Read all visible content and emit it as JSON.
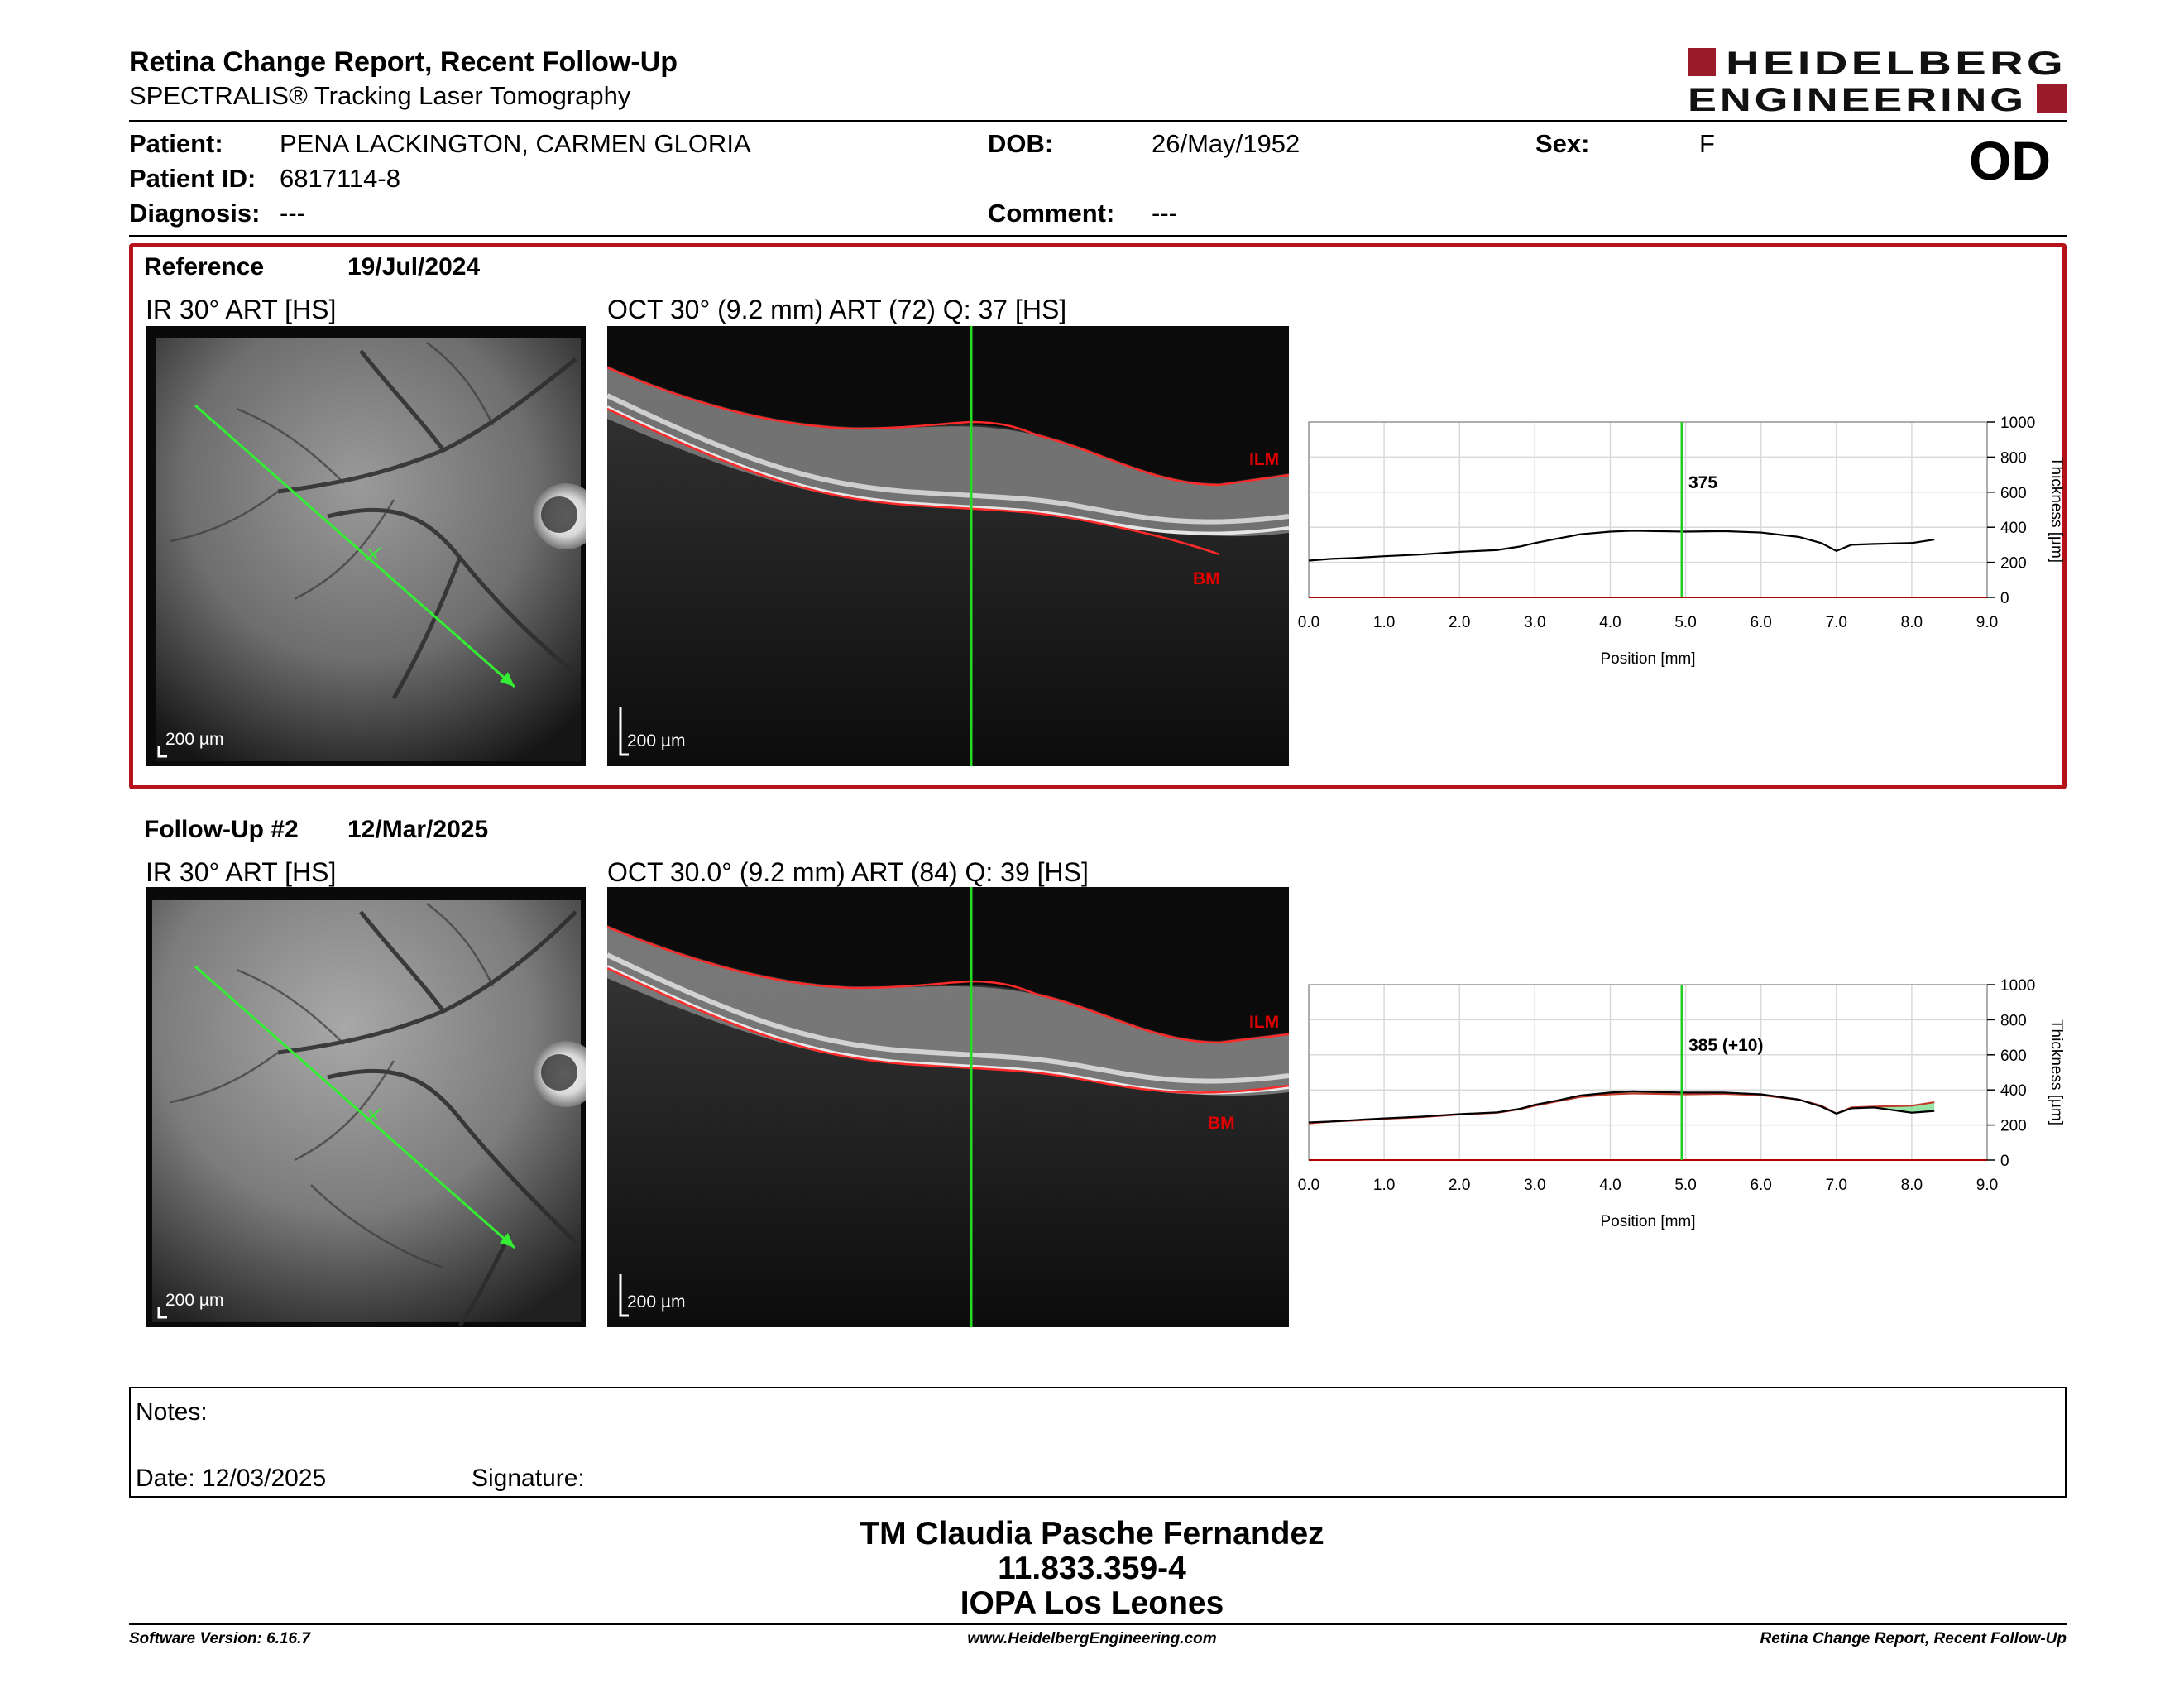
{
  "header": {
    "title": "Retina Change Report, Recent Follow-Up",
    "subtitle": "SPECTRALIS® Tracking Laser Tomography",
    "logo_line1": "HEIDELBERG",
    "logo_line2": "ENGINEERING",
    "brand_color": "#9b1b2a"
  },
  "patient": {
    "patient_label": "Patient:",
    "patient_name": "PENA LACKINGTON, CARMEN GLORIA",
    "id_label": "Patient ID:",
    "id_value": "6817114-8",
    "diagnosis_label": "Diagnosis:",
    "diagnosis_value": "---",
    "dob_label": "DOB:",
    "dob_value": "26/May/1952",
    "comment_label": "Comment:",
    "comment_value": "---",
    "sex_label": "Sex:",
    "sex_value": "F",
    "eye": "OD"
  },
  "reference": {
    "label": "Reference",
    "date": "19/Jul/2024",
    "ir_caption": "IR 30° ART [HS]",
    "oct_caption": "OCT 30° (9.2 mm) ART (72) Q: 37 [HS]",
    "scale_label": "200 µm",
    "ilm_label": "ILM",
    "bm_label": "BM",
    "highlight_color": "#b5121b"
  },
  "followup": {
    "label": "Follow-Up #2",
    "date": "12/Mar/2025",
    "ir_caption": "IR 30° ART [HS]",
    "oct_caption": "OCT 30.0° (9.2 mm) ART (84) Q: 39 [HS]",
    "scale_label": "200 µm",
    "ilm_label": "ILM",
    "bm_label": "BM"
  },
  "chart_data": [
    {
      "type": "line",
      "x_ticks": [
        "0.0",
        "1.0",
        "2.0",
        "3.0",
        "4.0",
        "5.0",
        "6.0",
        "7.0",
        "8.0",
        "9.0"
      ],
      "y_ticks": [
        "0",
        "200",
        "400",
        "600",
        "800",
        "1000"
      ],
      "xlabel": "Position [mm]",
      "ylabel": "Thickness [µm]",
      "xlim": [
        0,
        9
      ],
      "ylim": [
        0,
        1000
      ],
      "cursor_x": 4.95,
      "cursor_label": "375",
      "cursor_color": "#22cc22",
      "series": [
        {
          "color": "#000000",
          "x": [
            0.0,
            0.3,
            0.6,
            1.0,
            1.5,
            2.0,
            2.5,
            2.8,
            3.0,
            3.3,
            3.6,
            4.0,
            4.3,
            4.6,
            5.0,
            5.5,
            6.0,
            6.5,
            6.8,
            7.0,
            7.2,
            7.5,
            8.0,
            8.3
          ],
          "values": [
            210,
            220,
            225,
            235,
            245,
            260,
            270,
            290,
            310,
            335,
            360,
            375,
            380,
            378,
            375,
            378,
            370,
            345,
            310,
            265,
            300,
            305,
            310,
            330
          ]
        }
      ]
    },
    {
      "type": "line",
      "x_ticks": [
        "0.0",
        "1.0",
        "2.0",
        "3.0",
        "4.0",
        "5.0",
        "6.0",
        "7.0",
        "8.0",
        "9.0"
      ],
      "y_ticks": [
        "0",
        "200",
        "400",
        "600",
        "800",
        "1000"
      ],
      "xlabel": "Position [mm]",
      "ylabel": "Thickness [µm]",
      "xlim": [
        0,
        9
      ],
      "ylim": [
        0,
        1000
      ],
      "cursor_x": 4.95,
      "cursor_label": "385 (+10)",
      "cursor_color": "#22cc22",
      "series": [
        {
          "color": "#000000",
          "x": [
            0.0,
            0.3,
            0.6,
            1.0,
            1.5,
            2.0,
            2.5,
            2.8,
            3.0,
            3.3,
            3.6,
            4.0,
            4.3,
            4.6,
            5.0,
            5.5,
            6.0,
            6.5,
            6.8,
            7.0,
            7.2,
            7.5,
            8.0,
            8.3
          ],
          "values": [
            215,
            220,
            228,
            238,
            248,
            262,
            272,
            292,
            315,
            340,
            368,
            385,
            392,
            388,
            385,
            385,
            375,
            345,
            305,
            265,
            295,
            300,
            270,
            280
          ]
        },
        {
          "color": "#c0392b",
          "x": [
            0.0,
            0.3,
            0.6,
            1.0,
            1.5,
            2.0,
            2.5,
            2.8,
            3.0,
            3.3,
            3.6,
            4.0,
            4.3,
            4.6,
            5.0,
            5.5,
            6.0,
            6.5,
            6.8,
            7.0,
            7.2,
            7.5,
            8.0,
            8.3
          ],
          "values": [
            210,
            220,
            225,
            235,
            245,
            260,
            270,
            290,
            310,
            335,
            360,
            375,
            380,
            378,
            375,
            378,
            370,
            345,
            310,
            265,
            300,
            305,
            310,
            330
          ]
        }
      ]
    }
  ],
  "notes": {
    "notes_label": "Notes:",
    "date_label": "Date: 12/03/2025",
    "signature_label": "Signature:"
  },
  "signer": {
    "name": "TM Claudia Pasche Fernandez",
    "id": "11.833.359-4",
    "place": "IOPA Los Leones"
  },
  "footer": {
    "software": "Software Version: 6.16.7",
    "website": "www.HeidelbergEngineering.com",
    "report": "Retina Change Report, Recent Follow-Up"
  }
}
